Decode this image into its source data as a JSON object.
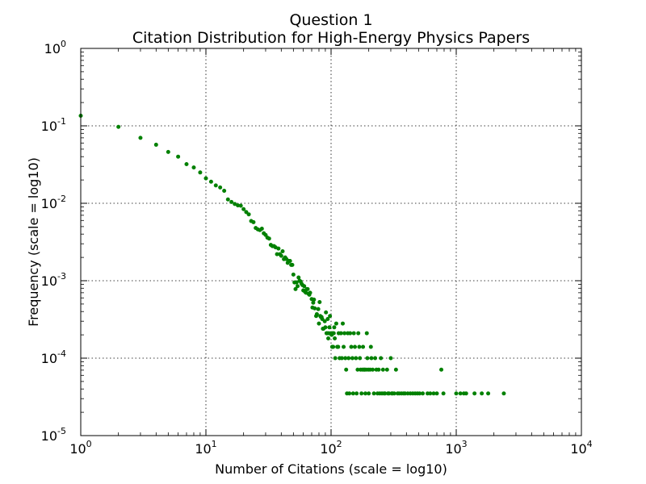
{
  "chart_data": {
    "type": "scatter",
    "title": "Question 1",
    "subtitle": "Citation Distribution for High-Energy Physics Papers",
    "xlabel": "Number of Citations (scale = log10)",
    "ylabel": "Frequency (scale = log10)",
    "xscale": "log",
    "yscale": "log",
    "xlim": [
      1,
      10000
    ],
    "ylim": [
      1e-05,
      1
    ],
    "grid": true,
    "marker_color": "#008000",
    "x_ticks": [
      {
        "base": "10",
        "exp": "0"
      },
      {
        "base": "10",
        "exp": "1"
      },
      {
        "base": "10",
        "exp": "2"
      },
      {
        "base": "10",
        "exp": "3"
      },
      {
        "base": "10",
        "exp": "4"
      }
    ],
    "y_ticks": [
      {
        "base": "10",
        "exp": "-5"
      },
      {
        "base": "10",
        "exp": "-4"
      },
      {
        "base": "10",
        "exp": "-3"
      },
      {
        "base": "10",
        "exp": "-2"
      },
      {
        "base": "10",
        "exp": "-1"
      },
      {
        "base": "10",
        "exp": "0"
      }
    ],
    "points": [
      [
        1,
        0.135
      ],
      [
        2,
        0.097
      ],
      [
        3,
        0.07
      ],
      [
        4,
        0.057
      ],
      [
        5,
        0.046
      ],
      [
        6,
        0.04
      ],
      [
        7,
        0.032
      ],
      [
        8,
        0.029
      ],
      [
        9,
        0.025
      ],
      [
        10,
        0.021
      ],
      [
        11,
        0.019
      ],
      [
        12,
        0.017
      ],
      [
        13,
        0.016
      ],
      [
        14,
        0.0145
      ],
      [
        15,
        0.0112
      ],
      [
        16,
        0.0104
      ],
      [
        17,
        0.0098
      ],
      [
        18,
        0.0094
      ],
      [
        19,
        0.0093
      ],
      [
        20,
        0.0084
      ],
      [
        21,
        0.0077
      ],
      [
        22,
        0.0072
      ],
      [
        23,
        0.0059
      ],
      [
        24,
        0.0057
      ],
      [
        25,
        0.0048
      ],
      [
        26,
        0.0046
      ],
      [
        27,
        0.0045
      ],
      [
        28,
        0.0047
      ],
      [
        29,
        0.0041
      ],
      [
        30,
        0.0039
      ],
      [
        31,
        0.0036
      ],
      [
        32,
        0.0035
      ],
      [
        33,
        0.0029
      ],
      [
        34,
        0.0028
      ],
      [
        35,
        0.0028
      ],
      [
        36,
        0.0027
      ],
      [
        37,
        0.0022
      ],
      [
        38,
        0.0026
      ],
      [
        39,
        0.0022
      ],
      [
        40,
        0.0021
      ],
      [
        41,
        0.0024
      ],
      [
        42,
        0.0019
      ],
      [
        43,
        0.002
      ],
      [
        44,
        0.0019
      ],
      [
        45,
        0.0017
      ],
      [
        46,
        0.0018
      ],
      [
        47,
        0.0018
      ],
      [
        48,
        0.0016
      ],
      [
        49,
        0.0016
      ],
      [
        50,
        0.0012
      ],
      [
        51,
        0.00095
      ],
      [
        52,
        0.00078
      ],
      [
        53,
        0.00095
      ],
      [
        54,
        0.00085
      ],
      [
        55,
        0.0011
      ],
      [
        56,
        0.001
      ],
      [
        57,
        0.00098
      ],
      [
        58,
        0.00092
      ],
      [
        59,
        0.00088
      ],
      [
        60,
        0.00075
      ],
      [
        61,
        0.00085
      ],
      [
        62,
        0.00072
      ],
      [
        63,
        0.0007
      ],
      [
        64,
        0.00078
      ],
      [
        65,
        0.00078
      ],
      [
        66,
        0.00068
      ],
      [
        67,
        0.00066
      ],
      [
        68,
        0.0007
      ],
      [
        70,
        0.00058
      ],
      [
        71,
        0.00045
      ],
      [
        72,
        0.00052
      ],
      [
        73,
        0.00057
      ],
      [
        74,
        0.00044
      ],
      [
        76,
        0.00035
      ],
      [
        77,
        0.00037
      ],
      [
        79,
        0.00043
      ],
      [
        80,
        0.00028
      ],
      [
        81,
        0.00053
      ],
      [
        82,
        0.00035
      ],
      [
        83,
        0.00034
      ],
      [
        84,
        0.00034
      ],
      [
        85,
        0.00032
      ],
      [
        86,
        0.00024
      ],
      [
        87,
        0.00024
      ],
      [
        89,
        0.0003
      ],
      [
        90,
        0.00025
      ],
      [
        91,
        0.00039
      ],
      [
        92,
        0.00021
      ],
      [
        93,
        0.00021
      ],
      [
        94,
        0.00032
      ],
      [
        95,
        0.00018
      ],
      [
        96,
        0.00021
      ],
      [
        97,
        0.00025
      ],
      [
        98,
        0.00035
      ],
      [
        100,
        0.00021
      ],
      [
        101,
        0.0002
      ],
      [
        102,
        0.00014
      ],
      [
        103,
        0.00021
      ],
      [
        104,
        0.00014
      ],
      [
        105,
        0.00021
      ],
      [
        106,
        0.00025
      ],
      [
        107,
        0.00018
      ],
      [
        108,
        0.0001
      ],
      [
        110,
        0.00028
      ],
      [
        112,
        0.00014
      ],
      [
        114,
        0.00014
      ],
      [
        115,
        0.00021
      ],
      [
        117,
        0.0001
      ],
      [
        120,
        0.00021
      ],
      [
        122,
        0.0001
      ],
      [
        124,
        0.00028
      ],
      [
        126,
        0.00014
      ],
      [
        128,
        0.00021
      ],
      [
        130,
        0.0001
      ],
      [
        132,
        7.1e-05
      ],
      [
        134,
        3.5e-05
      ],
      [
        136,
        0.00021
      ],
      [
        138,
        0.0001
      ],
      [
        140,
        3.5e-05
      ],
      [
        142,
        0.00021
      ],
      [
        145,
        0.00014
      ],
      [
        148,
        0.0001
      ],
      [
        150,
        3.5e-05
      ],
      [
        152,
        0.00021
      ],
      [
        155,
        0.00014
      ],
      [
        158,
        0.0001
      ],
      [
        160,
        3.5e-05
      ],
      [
        163,
        7.1e-05
      ],
      [
        165,
        0.00021
      ],
      [
        168,
        0.00014
      ],
      [
        170,
        0.0001
      ],
      [
        172,
        7.1e-05
      ],
      [
        175,
        3.5e-05
      ],
      [
        178,
        7.1e-05
      ],
      [
        180,
        0.00014
      ],
      [
        183,
        7.1e-05
      ],
      [
        185,
        7.1e-05
      ],
      [
        188,
        3.5e-05
      ],
      [
        190,
        7.1e-05
      ],
      [
        193,
        0.00021
      ],
      [
        195,
        0.0001
      ],
      [
        198,
        7.1e-05
      ],
      [
        200,
        3.5e-05
      ],
      [
        205,
        7.1e-05
      ],
      [
        208,
        0.00014
      ],
      [
        210,
        0.0001
      ],
      [
        215,
        7.1e-05
      ],
      [
        220,
        3.5e-05
      ],
      [
        225,
        0.0001
      ],
      [
        230,
        7.1e-05
      ],
      [
        235,
        3.5e-05
      ],
      [
        240,
        7.1e-05
      ],
      [
        245,
        3.5e-05
      ],
      [
        250,
        0.0001
      ],
      [
        255,
        3.5e-05
      ],
      [
        260,
        7.1e-05
      ],
      [
        265,
        3.5e-05
      ],
      [
        270,
        3.5e-05
      ],
      [
        280,
        7.1e-05
      ],
      [
        285,
        3.5e-05
      ],
      [
        290,
        3.5e-05
      ],
      [
        300,
        0.0001
      ],
      [
        305,
        3.5e-05
      ],
      [
        310,
        3.5e-05
      ],
      [
        320,
        3.5e-05
      ],
      [
        330,
        7.1e-05
      ],
      [
        340,
        3.5e-05
      ],
      [
        350,
        3.5e-05
      ],
      [
        365,
        3.5e-05
      ],
      [
        380,
        3.5e-05
      ],
      [
        390,
        3.5e-05
      ],
      [
        410,
        3.5e-05
      ],
      [
        430,
        3.5e-05
      ],
      [
        450,
        3.5e-05
      ],
      [
        470,
        3.5e-05
      ],
      [
        490,
        3.5e-05
      ],
      [
        510,
        3.5e-05
      ],
      [
        540,
        3.5e-05
      ],
      [
        590,
        3.5e-05
      ],
      [
        620,
        3.5e-05
      ],
      [
        660,
        3.5e-05
      ],
      [
        700,
        3.5e-05
      ],
      [
        760,
        7.1e-05
      ],
      [
        790,
        3.5e-05
      ],
      [
        1000,
        3.5e-05
      ],
      [
        1080,
        3.5e-05
      ],
      [
        1150,
        3.5e-05
      ],
      [
        1200,
        3.5e-05
      ],
      [
        1400,
        3.5e-05
      ],
      [
        1600,
        3.5e-05
      ],
      [
        1800,
        3.5e-05
      ],
      [
        2400,
        3.5e-05
      ]
    ]
  }
}
